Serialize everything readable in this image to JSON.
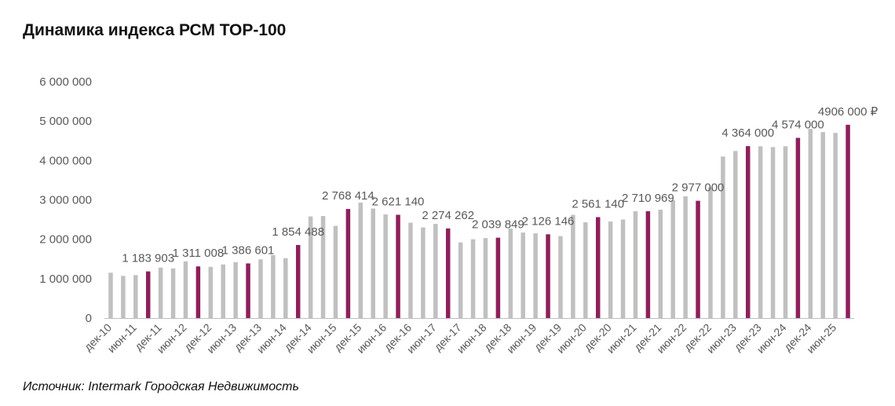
{
  "title": "Динамика индекса РСМ ТОР-100",
  "source": "Источник: Intermark Городская Недвижимость",
  "colors": {
    "regular": "#C0C0C0",
    "highlight": "#8E1F5C",
    "axis": "#BFBFBF",
    "text": "#595959"
  },
  "chart_data": {
    "type": "bar",
    "ylim": [
      0,
      6000000
    ],
    "yticks": [
      0,
      1000000,
      2000000,
      3000000,
      4000000,
      5000000,
      6000000
    ],
    "ytick_labels": [
      "0",
      "1 000 000",
      "2 000 000",
      "3 000 000",
      "4 000 000",
      "5 000 000",
      "6 000 000"
    ],
    "grid": false,
    "xtick_labels": [
      "дек-10",
      "июн-11",
      "дек-11",
      "июн-12",
      "дек-12",
      "июн-13",
      "дек-13",
      "июн-14",
      "дек-14",
      "июн-15",
      "дек-15",
      "июн-16",
      "дек-16",
      "июн-17",
      "дек-17",
      "июн-18",
      "дек-18",
      "июн-19",
      "дек-19",
      "июн-20",
      "дек-20",
      "июн-21",
      "дек-21",
      "июн-22",
      "дек-22",
      "июн-23",
      "дек-23",
      "июн-24",
      "дек-24",
      "июн-25"
    ],
    "values": [
      1150000,
      1070000,
      1090000,
      1183903,
      1280000,
      1260000,
      1440000,
      1311008,
      1300000,
      1360000,
      1420000,
      1386601,
      1490000,
      1600000,
      1520000,
      1854488,
      2580000,
      2590000,
      2340000,
      2768414,
      2930000,
      2780000,
      2630000,
      2621140,
      2420000,
      2300000,
      2390000,
      2274262,
      1920000,
      2000000,
      2030000,
      2039849,
      2270000,
      2170000,
      2150000,
      2126146,
      2080000,
      2620000,
      2430000,
      2561140,
      2450000,
      2500000,
      2710000,
      2710969,
      2750000,
      2990000,
      3090000,
      2977000,
      3320000,
      4100000,
      4240000,
      4364000,
      4360000,
      4340000,
      4360000,
      4574000,
      4800000,
      4720000,
      4700000,
      4906000
    ],
    "highlight_indices": [
      3,
      7,
      11,
      15,
      19,
      23,
      27,
      31,
      35,
      39,
      43,
      47,
      51,
      55,
      59
    ],
    "data_labels": [
      {
        "index": 3,
        "text": "1 183 903"
      },
      {
        "index": 7,
        "text": "1 311 008"
      },
      {
        "index": 11,
        "text": "1 386 601"
      },
      {
        "index": 15,
        "text": "1 854 488"
      },
      {
        "index": 19,
        "text": "2 768 414"
      },
      {
        "index": 23,
        "text": "2 621 140"
      },
      {
        "index": 27,
        "text": "2 274 262"
      },
      {
        "index": 31,
        "text": "2 039 849"
      },
      {
        "index": 35,
        "text": "2 126 146"
      },
      {
        "index": 39,
        "text": "2 561 140"
      },
      {
        "index": 43,
        "text": "2 710 969"
      },
      {
        "index": 47,
        "text": "2 977 000"
      },
      {
        "index": 51,
        "text": "4 364 000"
      },
      {
        "index": 55,
        "text": "4 574 000"
      },
      {
        "index": 59,
        "text": "4906 000 ₽"
      }
    ]
  }
}
